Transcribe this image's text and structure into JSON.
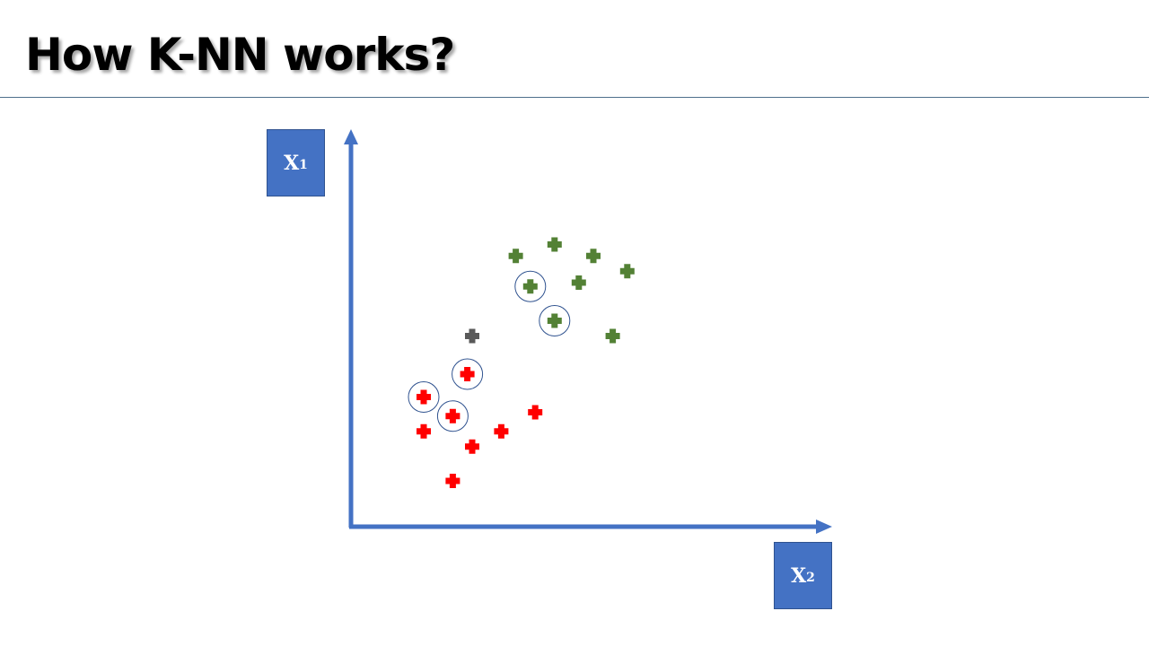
{
  "slide": {
    "title": "How K-NN works?"
  },
  "axes": {
    "vertical_label": {
      "base": "X",
      "sub": "1"
    },
    "horizontal_label": {
      "base": "X",
      "sub": "2"
    }
  },
  "colors": {
    "axis": "#4472c4",
    "class_green": "#538135",
    "class_red": "#ff0000",
    "new_point": "#595959",
    "neighbor_circle": "#2f528f"
  },
  "legend": {
    "marker_icon": "plus-icon",
    "neighbor_marker": "circle-outline"
  },
  "chart_data": {
    "type": "scatter",
    "title": "How K-NN works?",
    "xlabel": "X2",
    "ylabel": "X1",
    "xlim": [
      0,
      100
    ],
    "ylim": [
      0,
      100
    ],
    "grid": false,
    "legend": "none",
    "series": [
      {
        "class": "green",
        "color": "#538135",
        "points": [
          {
            "x": 34,
            "y": 71,
            "neighbor": false
          },
          {
            "x": 42,
            "y": 74,
            "neighbor": false
          },
          {
            "x": 50,
            "y": 71,
            "neighbor": false
          },
          {
            "x": 57,
            "y": 67,
            "neighbor": false
          },
          {
            "x": 37,
            "y": 63,
            "neighbor": true
          },
          {
            "x": 47,
            "y": 64,
            "neighbor": false
          },
          {
            "x": 42,
            "y": 54,
            "neighbor": true
          },
          {
            "x": 54,
            "y": 50,
            "neighbor": false
          }
        ]
      },
      {
        "class": "red",
        "color": "#ff0000",
        "points": [
          {
            "x": 24,
            "y": 40,
            "neighbor": true
          },
          {
            "x": 15,
            "y": 34,
            "neighbor": true
          },
          {
            "x": 21,
            "y": 29,
            "neighbor": true
          },
          {
            "x": 38,
            "y": 30,
            "neighbor": false
          },
          {
            "x": 15,
            "y": 25,
            "neighbor": false
          },
          {
            "x": 31,
            "y": 25,
            "neighbor": false
          },
          {
            "x": 25,
            "y": 21,
            "neighbor": false
          },
          {
            "x": 21,
            "y": 12,
            "neighbor": false
          }
        ]
      },
      {
        "class": "new",
        "color": "#595959",
        "points": [
          {
            "x": 25,
            "y": 50,
            "neighbor": false
          }
        ]
      }
    ]
  }
}
